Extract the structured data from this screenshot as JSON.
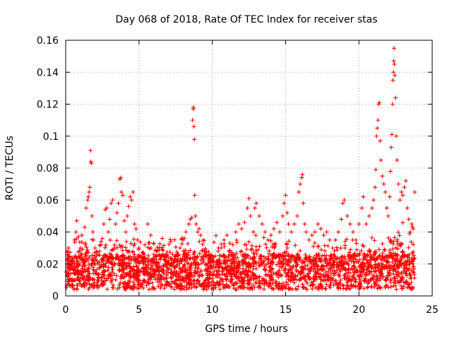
{
  "chart_data": {
    "type": "scatter",
    "title": "Day 068 of 2018, Rate Of TEC Index for receiver stas",
    "xlabel": "GPS time / hours",
    "ylabel": "ROTI / TECUs",
    "xlim": [
      0,
      25
    ],
    "ylim": [
      0,
      0.16
    ],
    "x_ticks": [
      0,
      5,
      10,
      15,
      20,
      25
    ],
    "x_tick_labels": [
      "0",
      "5",
      "10",
      "15",
      "20",
      "25"
    ],
    "y_ticks": [
      0,
      0.02,
      0.04,
      0.06,
      0.08,
      0.1,
      0.12,
      0.14,
      0.16
    ],
    "y_tick_labels": [
      "0",
      "0.02",
      "0.04",
      "0.06",
      "0.08",
      "0.1",
      "0.12",
      "0.14",
      "0.16"
    ],
    "grid": true,
    "marker": "+",
    "color": "#ff0000",
    "series": [
      {
        "name": "ROTI",
        "points": [
          [
            0.05,
            0.015
          ],
          [
            0.1,
            0.028
          ],
          [
            0.15,
            0.012
          ],
          [
            0.2,
            0.03
          ],
          [
            0.3,
            0.02
          ],
          [
            0.35,
            0.01
          ],
          [
            0.5,
            0.022
          ],
          [
            0.6,
            0.035
          ],
          [
            0.7,
            0.04
          ],
          [
            0.75,
            0.047
          ],
          [
            0.8,
            0.018
          ],
          [
            0.9,
            0.025
          ],
          [
            1.0,
            0.03
          ],
          [
            1.1,
            0.038
          ],
          [
            1.2,
            0.015
          ],
          [
            1.3,
            0.043
          ],
          [
            1.4,
            0.055
          ],
          [
            1.5,
            0.06
          ],
          [
            1.55,
            0.062
          ],
          [
            1.6,
            0.065
          ],
          [
            1.65,
            0.068
          ],
          [
            1.7,
            0.091
          ],
          [
            1.72,
            0.084
          ],
          [
            1.75,
            0.083
          ],
          [
            1.8,
            0.05
          ],
          [
            1.85,
            0.04
          ],
          [
            1.9,
            0.035
          ],
          [
            2.0,
            0.03
          ],
          [
            2.1,
            0.025
          ],
          [
            2.2,
            0.02
          ],
          [
            2.3,
            0.028
          ],
          [
            2.4,
            0.032
          ],
          [
            2.5,
            0.036
          ],
          [
            2.6,
            0.045
          ],
          [
            2.7,
            0.054
          ],
          [
            2.8,
            0.055
          ],
          [
            2.9,
            0.04
          ],
          [
            3.0,
            0.048
          ],
          [
            3.1,
            0.058
          ],
          [
            3.2,
            0.06
          ],
          [
            3.3,
            0.03
          ],
          [
            3.4,
            0.045
          ],
          [
            3.5,
            0.052
          ],
          [
            3.6,
            0.058
          ],
          [
            3.7,
            0.073
          ],
          [
            3.75,
            0.074
          ],
          [
            3.8,
            0.065
          ],
          [
            3.9,
            0.063
          ],
          [
            4.0,
            0.047
          ],
          [
            4.1,
            0.04
          ],
          [
            4.2,
            0.05
          ],
          [
            4.3,
            0.056
          ],
          [
            4.4,
            0.062
          ],
          [
            4.5,
            0.06
          ],
          [
            4.6,
            0.065
          ],
          [
            4.7,
            0.045
          ],
          [
            4.8,
            0.042
          ],
          [
            4.9,
            0.035
          ],
          [
            5.0,
            0.03
          ],
          [
            5.2,
            0.022
          ],
          [
            5.4,
            0.032
          ],
          [
            5.6,
            0.045
          ],
          [
            5.8,
            0.038
          ],
          [
            6.0,
            0.033
          ],
          [
            6.2,
            0.028
          ],
          [
            6.4,
            0.03
          ],
          [
            6.6,
            0.036
          ],
          [
            6.8,
            0.025
          ],
          [
            7.0,
            0.022
          ],
          [
            7.2,
            0.02
          ],
          [
            7.4,
            0.018
          ],
          [
            7.6,
            0.025
          ],
          [
            7.8,
            0.03
          ],
          [
            8.0,
            0.035
          ],
          [
            8.2,
            0.04
          ],
          [
            8.4,
            0.045
          ],
          [
            8.5,
            0.048
          ],
          [
            8.6,
            0.049
          ],
          [
            8.65,
            0.11
          ],
          [
            8.7,
            0.117
          ],
          [
            8.72,
            0.118
          ],
          [
            8.75,
            0.106
          ],
          [
            8.78,
            0.098
          ],
          [
            8.8,
            0.063
          ],
          [
            8.85,
            0.05
          ],
          [
            8.9,
            0.045
          ],
          [
            9.0,
            0.04
          ],
          [
            9.1,
            0.042
          ],
          [
            9.2,
            0.038
          ],
          [
            9.4,
            0.035
          ],
          [
            9.6,
            0.028
          ],
          [
            9.8,
            0.025
          ],
          [
            10.0,
            0.022
          ],
          [
            10.2,
            0.025
          ],
          [
            10.4,
            0.028
          ],
          [
            10.6,
            0.03
          ],
          [
            10.8,
            0.035
          ],
          [
            11.0,
            0.038
          ],
          [
            11.2,
            0.033
          ],
          [
            11.4,
            0.032
          ],
          [
            11.6,
            0.04
          ],
          [
            11.8,
            0.045
          ],
          [
            12.0,
            0.042
          ],
          [
            12.2,
            0.046
          ],
          [
            12.4,
            0.055
          ],
          [
            12.5,
            0.061
          ],
          [
            12.6,
            0.05
          ],
          [
            12.8,
            0.04
          ],
          [
            12.9,
            0.055
          ],
          [
            13.0,
            0.058
          ],
          [
            13.2,
            0.05
          ],
          [
            13.4,
            0.045
          ],
          [
            13.6,
            0.04
          ],
          [
            13.8,
            0.035
          ],
          [
            14.0,
            0.038
          ],
          [
            14.2,
            0.042
          ],
          [
            14.4,
            0.046
          ],
          [
            14.6,
            0.04
          ],
          [
            14.8,
            0.05
          ],
          [
            14.9,
            0.058
          ],
          [
            15.0,
            0.063
          ],
          [
            15.1,
            0.052
          ],
          [
            15.2,
            0.045
          ],
          [
            15.4,
            0.04
          ],
          [
            15.6,
            0.045
          ],
          [
            15.8,
            0.05
          ],
          [
            15.9,
            0.065
          ],
          [
            16.0,
            0.07
          ],
          [
            16.1,
            0.074
          ],
          [
            16.15,
            0.076
          ],
          [
            16.2,
            0.058
          ],
          [
            16.3,
            0.045
          ],
          [
            16.4,
            0.04
          ],
          [
            16.6,
            0.035
          ],
          [
            16.8,
            0.038
          ],
          [
            17.0,
            0.04
          ],
          [
            17.2,
            0.045
          ],
          [
            17.4,
            0.042
          ],
          [
            17.6,
            0.038
          ],
          [
            17.8,
            0.04
          ],
          [
            18.0,
            0.035
          ],
          [
            18.2,
            0.03
          ],
          [
            18.4,
            0.035
          ],
          [
            18.6,
            0.04
          ],
          [
            18.8,
            0.048
          ],
          [
            18.9,
            0.058
          ],
          [
            19.0,
            0.06
          ],
          [
            19.2,
            0.05
          ],
          [
            19.4,
            0.045
          ],
          [
            19.6,
            0.04
          ],
          [
            19.8,
            0.035
          ],
          [
            20.0,
            0.045
          ],
          [
            20.2,
            0.055
          ],
          [
            20.3,
            0.062
          ],
          [
            20.5,
            0.045
          ],
          [
            20.7,
            0.05
          ],
          [
            20.9,
            0.055
          ],
          [
            21.0,
            0.06
          ],
          [
            21.1,
            0.068
          ],
          [
            21.15,
            0.079
          ],
          [
            21.2,
            0.1
          ],
          [
            21.25,
            0.105
          ],
          [
            21.3,
            0.11
          ],
          [
            21.35,
            0.12
          ],
          [
            21.4,
            0.121
          ],
          [
            21.45,
            0.097
          ],
          [
            21.5,
            0.085
          ],
          [
            21.6,
            0.075
          ],
          [
            21.7,
            0.07
          ],
          [
            21.8,
            0.065
          ],
          [
            21.9,
            0.055
          ],
          [
            22.0,
            0.05
          ],
          [
            22.1,
            0.062
          ],
          [
            22.15,
            0.078
          ],
          [
            22.2,
            0.093
          ],
          [
            22.25,
            0.101
          ],
          [
            22.3,
            0.12
          ],
          [
            22.32,
            0.135
          ],
          [
            22.35,
            0.14
          ],
          [
            22.38,
            0.147
          ],
          [
            22.4,
            0.155
          ],
          [
            22.42,
            0.145
          ],
          [
            22.45,
            0.138
          ],
          [
            22.5,
            0.124
          ],
          [
            22.55,
            0.1
          ],
          [
            22.6,
            0.085
          ],
          [
            22.7,
            0.07
          ],
          [
            22.8,
            0.06
          ],
          [
            22.9,
            0.065
          ],
          [
            23.0,
            0.063
          ],
          [
            23.1,
            0.068
          ],
          [
            23.2,
            0.072
          ],
          [
            23.3,
            0.055
          ],
          [
            23.4,
            0.048
          ],
          [
            23.5,
            0.04
          ],
          [
            23.6,
            0.045
          ],
          [
            23.7,
            0.042
          ],
          [
            23.8,
            0.065
          ]
        ]
      }
    ]
  }
}
